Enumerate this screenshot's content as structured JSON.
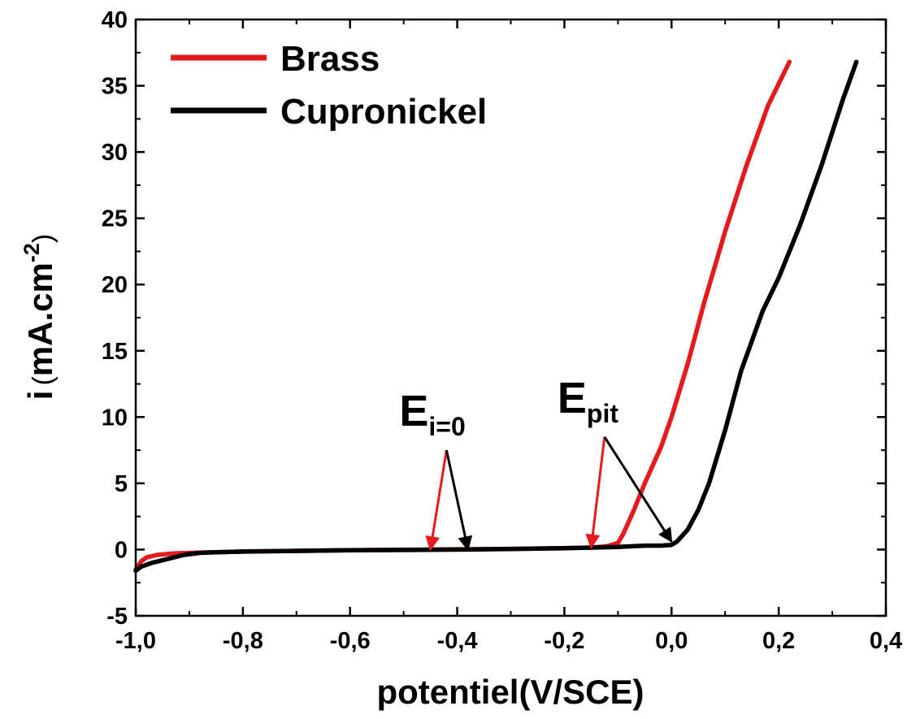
{
  "chart_data": {
    "type": "line",
    "title": "",
    "xlabel": "potentiel(V/SCE)",
    "ylabel": {
      "prefix": "i",
      "paren_open": "(",
      "unit": "mA.cm",
      "exponent": "-2",
      "paren_close": ")"
    },
    "xlim": [
      -1.0,
      0.4
    ],
    "ylim": [
      -5,
      40
    ],
    "x_ticks": [
      -1.0,
      -0.8,
      -0.6,
      -0.4,
      -0.2,
      0.0,
      0.2,
      0.4
    ],
    "x_tick_labels": [
      "-1,0",
      "-0,8",
      "-0,6",
      "-0,4",
      "-0,2",
      "0,0",
      "0,2",
      "0,4"
    ],
    "y_ticks": [
      -5,
      0,
      5,
      10,
      15,
      20,
      25,
      30,
      35,
      40
    ],
    "y_tick_labels": [
      "-5",
      "0",
      "5",
      "10",
      "15",
      "20",
      "25",
      "30",
      "35",
      "40"
    ],
    "grid": false,
    "legend_position": "top-left",
    "series": [
      {
        "name": "Brass",
        "color": "#e8191c",
        "points": [
          [
            -1.0,
            -1.5
          ],
          [
            -0.99,
            -0.9
          ],
          [
            -0.98,
            -0.6
          ],
          [
            -0.96,
            -0.4
          ],
          [
            -0.93,
            -0.3
          ],
          [
            -0.9,
            -0.25
          ],
          [
            -0.85,
            -0.2
          ],
          [
            -0.8,
            -0.15
          ],
          [
            -0.6,
            -0.05
          ],
          [
            -0.45,
            0.0
          ],
          [
            -0.3,
            0.05
          ],
          [
            -0.2,
            0.1
          ],
          [
            -0.15,
            0.15
          ],
          [
            -0.12,
            0.25
          ],
          [
            -0.1,
            0.5
          ],
          [
            -0.09,
            1.2
          ],
          [
            -0.07,
            3.0
          ],
          [
            -0.05,
            5.0
          ],
          [
            -0.02,
            7.7
          ],
          [
            0.0,
            10.0
          ],
          [
            0.03,
            14.0
          ],
          [
            0.06,
            18.5
          ],
          [
            0.1,
            24.0
          ],
          [
            0.14,
            29.0
          ],
          [
            0.18,
            33.5
          ],
          [
            0.22,
            36.8
          ]
        ]
      },
      {
        "name": "Cupronickel",
        "color": "#000000",
        "points": [
          [
            -1.0,
            -1.6
          ],
          [
            -0.99,
            -1.3
          ],
          [
            -0.97,
            -1.0
          ],
          [
            -0.94,
            -0.7
          ],
          [
            -0.91,
            -0.4
          ],
          [
            -0.88,
            -0.25
          ],
          [
            -0.85,
            -0.2
          ],
          [
            -0.8,
            -0.15
          ],
          [
            -0.6,
            -0.05
          ],
          [
            -0.38,
            0.0
          ],
          [
            -0.2,
            0.1
          ],
          [
            -0.1,
            0.2
          ],
          [
            -0.05,
            0.3
          ],
          [
            -0.02,
            0.3
          ],
          [
            0.0,
            0.35
          ],
          [
            0.01,
            0.6
          ],
          [
            0.03,
            1.5
          ],
          [
            0.05,
            3.0
          ],
          [
            0.07,
            5.0
          ],
          [
            0.1,
            9.0
          ],
          [
            0.13,
            13.5
          ],
          [
            0.17,
            18.0
          ],
          [
            0.2,
            20.5
          ],
          [
            0.24,
            24.5
          ],
          [
            0.28,
            29.0
          ],
          [
            0.32,
            34.0
          ],
          [
            0.345,
            36.8
          ]
        ]
      }
    ],
    "annotations": [
      {
        "main": "E",
        "sub": "i=0",
        "arrows": [
          {
            "color": "#e8191c",
            "from": [
              -0.42,
              7.5
            ],
            "to": [
              -0.45,
              0.0
            ]
          },
          {
            "color": "#000000",
            "from": [
              -0.42,
              7.5
            ],
            "to": [
              -0.38,
              0.0
            ]
          }
        ]
      },
      {
        "main": "E",
        "sub": "pit",
        "arrows": [
          {
            "color": "#e8191c",
            "from": [
              -0.125,
              8.5
            ],
            "to": [
              -0.15,
              0.15
            ]
          },
          {
            "color": "#000000",
            "from": [
              -0.125,
              8.5
            ],
            "to": [
              0.0,
              0.6
            ]
          }
        ]
      }
    ]
  }
}
